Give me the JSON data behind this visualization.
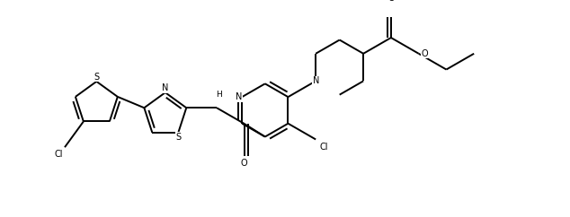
{
  "bg_color": "#ffffff",
  "line_color": "#000000",
  "lw": 1.4,
  "fs": 7.0,
  "figsize": [
    6.34,
    2.42
  ],
  "dpi": 100,
  "xlim": [
    0,
    12.5
  ],
  "ylim": [
    0,
    4.5
  ]
}
